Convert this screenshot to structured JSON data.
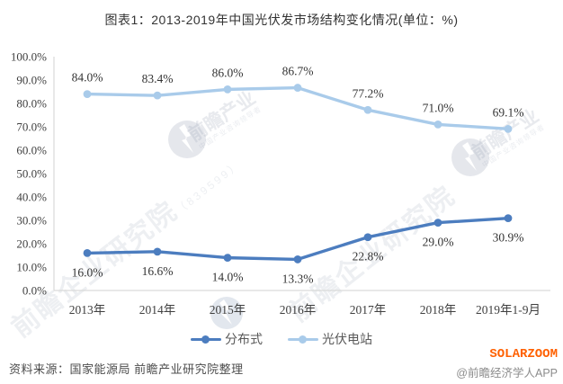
{
  "chart_data": {
    "type": "line",
    "title": "图表1：2013-2019年中国光伏发市场结构变化情况(单位：%)",
    "categories": [
      "2013年",
      "2014年",
      "2015年",
      "2016年",
      "2017年",
      "2018年",
      "2019年1-9月"
    ],
    "series": [
      {
        "name": "分布式",
        "color": "#4C7DBF",
        "values": [
          16.0,
          16.6,
          14.0,
          13.3,
          22.8,
          29.0,
          30.9
        ],
        "label_position": "below"
      },
      {
        "name": "光伏电站",
        "color": "#A9CBEA",
        "values": [
          84.0,
          83.4,
          86.0,
          86.7,
          77.2,
          71.0,
          69.1
        ],
        "label_position": "above"
      }
    ],
    "ylabel": "",
    "xlabel": "",
    "ylim": [
      0,
      100
    ],
    "ytick_step": 10,
    "ytick_format": "percent_1dp",
    "grid": false,
    "legend_position": "bottom",
    "label_format": "percent_1dp"
  },
  "footer": {
    "source": "资料来源：国家能源局 前瞻产业研究院整理",
    "brand": "SOLARZOOM",
    "credit": "@前瞻经济学人APP"
  },
  "watermark": {
    "agency": "前瞻企业研究院",
    "code": "（839599）",
    "brand": "前瞻产业",
    "tagline": "中国产业咨询领导者"
  },
  "colors": {
    "series_dark": "#4C7DBF",
    "series_light": "#A9CBEA",
    "axis": "#D9D9D9",
    "tick_text": "#404040",
    "data_label": "#333333",
    "brand_orange": "#FF6000"
  }
}
